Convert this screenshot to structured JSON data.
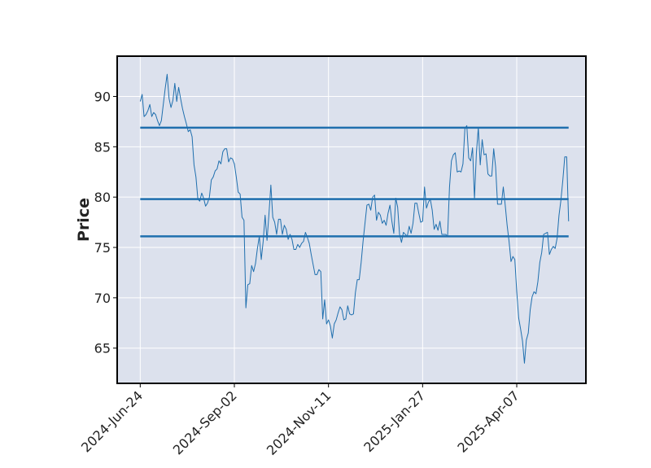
{
  "chart_data": {
    "type": "line",
    "title": "",
    "xlabel": "",
    "ylabel": "Price",
    "x_tick_labels": [
      "2024-Jun-24",
      "2024-Sep-02",
      "2024-Nov-11",
      "2025-Jan-27",
      "2025-Apr-07"
    ],
    "x_tick_positions": [
      0,
      49,
      98,
      147,
      196
    ],
    "y_ticks": [
      65,
      70,
      75,
      80,
      85,
      90
    ],
    "ylim": [
      61.5,
      94
    ],
    "xlim": [
      -12,
      232
    ],
    "grid": true,
    "colors": {
      "background": "#dce1ed",
      "line": "#1f6fae",
      "grid": "#ffffff"
    },
    "series": [
      {
        "values": [
          89.5,
          90.2,
          88.0,
          88.2,
          88.6,
          89.2,
          88.0,
          88.4,
          88.2,
          87.6,
          87.1,
          87.6,
          89.2,
          90.8,
          92.2,
          89.8,
          88.9,
          89.6,
          91.3,
          89.5,
          90.9,
          89.8,
          88.8,
          88.0,
          87.3,
          86.5,
          86.7,
          86.0,
          83.2,
          82.0,
          79.8,
          79.6,
          80.4,
          79.9,
          79.1,
          79.4,
          80.0,
          81.7,
          82.0,
          82.6,
          82.8,
          83.6,
          83.3,
          84.5,
          84.8,
          84.8,
          83.5,
          83.9,
          83.8,
          83.3,
          82.0,
          80.5,
          80.3,
          78.0,
          77.7,
          69.0,
          71.3,
          71.4,
          73.2,
          72.6,
          73.4,
          74.9,
          76.1,
          73.8,
          75.6,
          78.2,
          75.7,
          78.3,
          81.2,
          78.0,
          77.5,
          76.3,
          77.8,
          77.8,
          76.3,
          77.2,
          76.8,
          75.8,
          76.3,
          75.8,
          74.8,
          74.8,
          75.3,
          75.0,
          75.4,
          75.6,
          76.5,
          76.0,
          75.4,
          74.3,
          73.3,
          72.3,
          72.3,
          72.8,
          72.6,
          67.9,
          69.8,
          67.4,
          67.8,
          67.2,
          66.0,
          67.4,
          67.8,
          68.5,
          69.1,
          68.8,
          67.8,
          67.9,
          69.2,
          68.4,
          68.3,
          68.4,
          70.5,
          71.8,
          71.8,
          73.5,
          75.6,
          77.4,
          79.2,
          79.3,
          78.7,
          80.0,
          80.2,
          77.7,
          78.5,
          78.2,
          77.4,
          77.7,
          77.2,
          78.4,
          79.2,
          77.6,
          76.4,
          79.9,
          79.0,
          76.3,
          75.5,
          76.5,
          76.3,
          76.1,
          77.1,
          76.4,
          77.4,
          79.4,
          79.4,
          78.4,
          77.5,
          77.6,
          81.0,
          78.9,
          79.5,
          79.8,
          78.7,
          76.8,
          77.3,
          76.7,
          77.6,
          76.3,
          76.3,
          76.3,
          76.1,
          81.0,
          83.6,
          84.2,
          84.4,
          82.5,
          82.6,
          82.5,
          83.3,
          86.8,
          87.1,
          83.9,
          83.6,
          84.9,
          79.8,
          84.4,
          86.9,
          83.2,
          85.7,
          84.2,
          84.3,
          82.3,
          82.1,
          82.1,
          84.8,
          83.0,
          79.3,
          79.3,
          79.3,
          81.0,
          79.2,
          77.2,
          75.6,
          73.6,
          74.1,
          73.8,
          70.6,
          68.0,
          66.9,
          65.7,
          63.5,
          65.8,
          66.5,
          68.8,
          70.1,
          70.6,
          70.4,
          71.6,
          73.5,
          74.5,
          76.3,
          76.4,
          76.5,
          74.3,
          74.8,
          75.1,
          74.9,
          75.9,
          78.2,
          79.7,
          81.7,
          84.0,
          84.0,
          77.6
        ]
      }
    ],
    "horizontal_lines": [
      {
        "y": 86.9
      },
      {
        "y": 79.8
      },
      {
        "y": 76.1
      }
    ]
  }
}
